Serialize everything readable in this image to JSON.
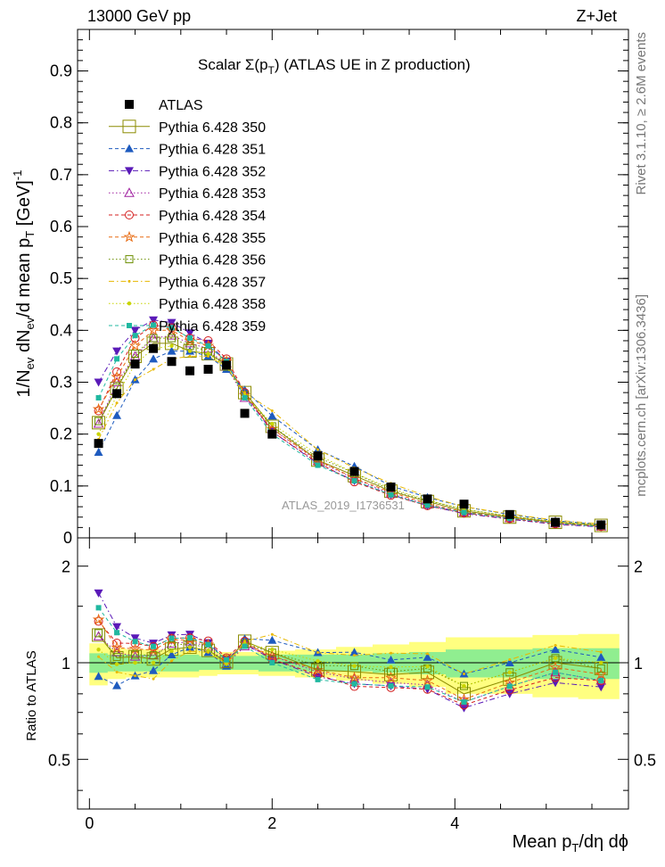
{
  "header": {
    "left": "13000 GeV pp",
    "right": "Z+Jet"
  },
  "side_labels": {
    "rivet": "Rivet 3.1.10, ≥ 2.6M events",
    "mcplots": "mcplots.cern.ch [arXiv:1306.3436]"
  },
  "chart_data": [
    {
      "type": "scatter",
      "title_main": "Scalar Σ(p",
      "title_sub": "T",
      "title_rest": ") (ATLAS UE in Z production)",
      "ylabel_a": "1/N",
      "ylabel_b": "ev",
      "ylabel_c": " dN",
      "ylabel_d": "ev",
      "ylabel_e": "/d mean p",
      "ylabel_f": "T",
      "ylabel_g": " [GeV]",
      "ylabel_h": "-1",
      "watermark": "ATLAS_2019_I1736531",
      "ylim": [
        0,
        0.98
      ],
      "yticks": [
        0,
        0.1,
        0.2,
        0.3,
        0.4,
        0.5,
        0.6,
        0.7,
        0.8,
        0.9
      ],
      "ytick_labels": [
        "0",
        "0.1",
        "0.2",
        "0.3",
        "0.4",
        "0.5",
        "0.6",
        "0.7",
        "0.8",
        "0.9"
      ],
      "xlim": [
        -0.13,
        5.9
      ],
      "legend_position": "top-left",
      "x": [
        0.1,
        0.3,
        0.5,
        0.7,
        0.9,
        1.1,
        1.3,
        1.5,
        1.7,
        2.0,
        2.5,
        2.9,
        3.3,
        3.7,
        4.1,
        4.6,
        5.1,
        5.6
      ],
      "atlas": [
        0.182,
        0.278,
        0.335,
        0.365,
        0.34,
        0.322,
        0.325,
        0.333,
        0.24,
        0.2,
        0.158,
        0.128,
        0.098,
        0.075,
        0.065,
        0.045,
        0.03,
        0.025
      ],
      "series": [
        {
          "name": "ATLAS",
          "color": "#000000",
          "marker": "square-filled",
          "dash": "none",
          "values": [
            0.182,
            0.278,
            0.335,
            0.365,
            0.34,
            0.322,
            0.325,
            0.333,
            0.24,
            0.2,
            0.158,
            0.128,
            0.098,
            0.075,
            0.065,
            0.045,
            0.03,
            0.025
          ]
        },
        {
          "name": "Pythia 6.428 350",
          "color": "#8b8b00",
          "marker": "square-open-large",
          "dash": "solid",
          "values": [
            0.222,
            0.288,
            0.35,
            0.375,
            0.375,
            0.36,
            0.355,
            0.335,
            0.28,
            0.215,
            0.15,
            0.12,
            0.09,
            0.07,
            0.052,
            0.04,
            0.03,
            0.024
          ]
        },
        {
          "name": "Pythia 6.428 351",
          "color": "#1e5bbf",
          "marker": "triangle-up-filled",
          "dash": "dashed",
          "values": [
            0.165,
            0.236,
            0.305,
            0.345,
            0.36,
            0.36,
            0.35,
            0.325,
            0.285,
            0.235,
            0.17,
            0.138,
            0.1,
            0.078,
            0.06,
            0.045,
            0.033,
            0.026
          ]
        },
        {
          "name": "Pythia 6.428 352",
          "color": "#5a1ab8",
          "marker": "triangle-down-filled",
          "dash": "dashdot",
          "values": [
            0.3,
            0.36,
            0.4,
            0.42,
            0.415,
            0.395,
            0.375,
            0.34,
            0.275,
            0.205,
            0.143,
            0.11,
            0.083,
            0.062,
            0.047,
            0.036,
            0.026,
            0.021
          ]
        },
        {
          "name": "Pythia 6.428 353",
          "color": "#a020a0",
          "marker": "triangle-up-open",
          "dash": "dotted",
          "values": [
            0.22,
            0.3,
            0.35,
            0.385,
            0.39,
            0.375,
            0.365,
            0.33,
            0.27,
            0.21,
            0.148,
            0.114,
            0.085,
            0.064,
            0.049,
            0.038,
            0.028,
            0.022
          ]
        },
        {
          "name": "Pythia 6.428 354",
          "color": "#d42020",
          "marker": "circle-open",
          "dash": "dashed",
          "values": [
            0.245,
            0.32,
            0.385,
            0.41,
            0.405,
            0.385,
            0.38,
            0.345,
            0.28,
            0.205,
            0.145,
            0.108,
            0.082,
            0.062,
            0.048,
            0.037,
            0.027,
            0.022
          ]
        },
        {
          "name": "Pythia 6.428 355",
          "color": "#e86a10",
          "marker": "star-open",
          "dash": "dashed",
          "values": [
            0.248,
            0.31,
            0.37,
            0.4,
            0.4,
            0.38,
            0.37,
            0.34,
            0.275,
            0.21,
            0.15,
            0.115,
            0.088,
            0.066,
            0.05,
            0.039,
            0.029,
            0.023
          ]
        },
        {
          "name": "Pythia 6.428 356",
          "color": "#6b8e00",
          "marker": "square-open",
          "dash": "dotted",
          "values": [
            0.225,
            0.29,
            0.355,
            0.385,
            0.385,
            0.37,
            0.36,
            0.33,
            0.275,
            0.215,
            0.155,
            0.125,
            0.092,
            0.072,
            0.055,
            0.042,
            0.031,
            0.024
          ]
        },
        {
          "name": "Pythia 6.428 357",
          "color": "#e8b800",
          "marker": "line-dot",
          "dash": "dashdot",
          "values": [
            0.19,
            0.26,
            0.305,
            0.325,
            0.345,
            0.35,
            0.35,
            0.33,
            0.28,
            0.245,
            0.17,
            0.135,
            0.105,
            0.08,
            0.06,
            0.046,
            0.034,
            0.027
          ]
        },
        {
          "name": "Pythia 6.428 358",
          "color": "#c8d400",
          "marker": "dot",
          "dash": "dotted",
          "values": [
            0.2,
            0.275,
            0.335,
            0.365,
            0.37,
            0.36,
            0.355,
            0.33,
            0.275,
            0.22,
            0.16,
            0.125,
            0.095,
            0.073,
            0.055,
            0.042,
            0.031,
            0.025
          ]
        },
        {
          "name": "Pythia 6.428 359",
          "color": "#20b8a0",
          "marker": "square-small-filled",
          "dash": "dashed",
          "values": [
            0.27,
            0.345,
            0.39,
            0.41,
            0.405,
            0.385,
            0.37,
            0.34,
            0.27,
            0.2,
            0.14,
            0.11,
            0.083,
            0.063,
            0.049,
            0.038,
            0.028,
            0.022
          ]
        }
      ]
    },
    {
      "type": "scatter",
      "ylabel": "Ratio to ATLAS",
      "yscale": "log",
      "ylim": [
        0.35,
        2.45
      ],
      "yticks": [
        0.5,
        1,
        2
      ],
      "ytick_labels": [
        "0.5",
        "1",
        "2"
      ],
      "xlabel_a": "Mean p",
      "xlabel_b": "T",
      "xlabel_c": "/dη dϕ",
      "xticks": [
        0,
        2,
        4
      ],
      "xtick_labels": [
        "0",
        "2",
        "4"
      ],
      "reference_line": 1,
      "band_inner_halfwidth": [
        0.07,
        0.06,
        0.06,
        0.06,
        0.06,
        0.06,
        0.05,
        0.05,
        0.05,
        0.06,
        0.06,
        0.06,
        0.07,
        0.08,
        0.1,
        0.1,
        0.11,
        0.11
      ],
      "band_outer_halfwidth": [
        0.15,
        0.11,
        0.1,
        0.1,
        0.1,
        0.1,
        0.09,
        0.08,
        0.08,
        0.09,
        0.1,
        0.12,
        0.14,
        0.16,
        0.2,
        0.2,
        0.22,
        0.23
      ]
    }
  ]
}
